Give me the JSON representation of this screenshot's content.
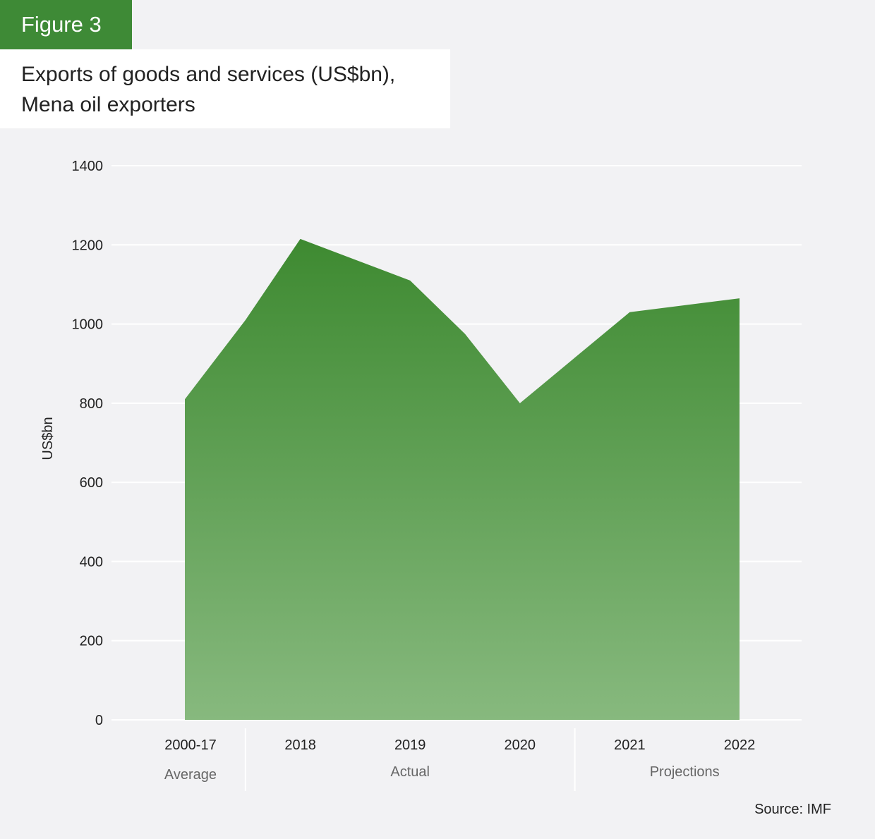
{
  "figure_label": "Figure 3",
  "title_line1": "Exports of goods and services (US$bn),",
  "title_line2": "Mena oil exporters",
  "source": "Source: IMF",
  "colors": {
    "accent": "#3e8a36",
    "area_top": "#3e8a31",
    "area_bottom": "#87b97e",
    "background": "#f2f2f4"
  },
  "chart_data": {
    "type": "area",
    "ylabel": "US$bn",
    "ylim": [
      0,
      1400
    ],
    "yticks": [
      0,
      200,
      400,
      600,
      800,
      1000,
      1200,
      1400
    ],
    "grid": true,
    "categories": [
      "2000-17",
      "2018",
      "2019",
      "2020",
      "2021",
      "2022"
    ],
    "groups": [
      {
        "label": "Average",
        "categories": [
          "2000-17"
        ]
      },
      {
        "label": "Actual",
        "categories": [
          "2018",
          "2019",
          "2020"
        ]
      },
      {
        "label": "Projections",
        "categories": [
          "2021",
          "2022"
        ]
      }
    ],
    "points": [
      {
        "x": 0,
        "y": 810
      },
      {
        "x": 0.5,
        "y": 1010
      },
      {
        "x": 1,
        "y": 1215
      },
      {
        "x": 2,
        "y": 1110
      },
      {
        "x": 2.5,
        "y": 975
      },
      {
        "x": 3,
        "y": 800
      },
      {
        "x": 3.5,
        "y": 915
      },
      {
        "x": 4,
        "y": 1030
      },
      {
        "x": 5,
        "y": 1065
      }
    ]
  }
}
